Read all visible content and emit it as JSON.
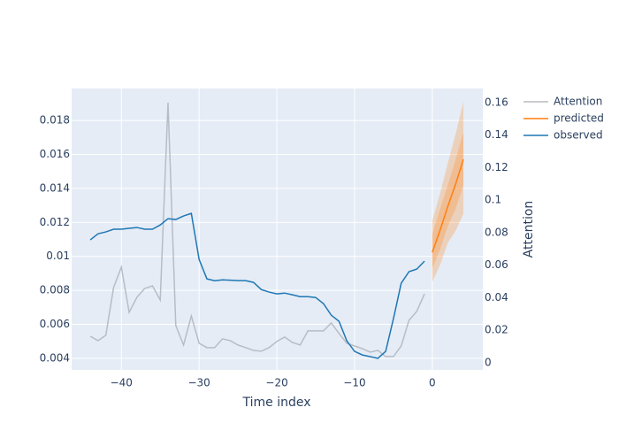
{
  "chart_data": {
    "type": "line",
    "xlabel": "Time index",
    "y2label": "Attention",
    "xlim": [
      -46.4,
      6.5
    ],
    "ylim": [
      0.00332,
      0.01988
    ],
    "y2lim": [
      -0.0044,
      0.1687
    ],
    "xticks": [
      {
        "value": -40,
        "label": "−40"
      },
      {
        "value": -30,
        "label": "−30"
      },
      {
        "value": -20,
        "label": "−20"
      },
      {
        "value": -10,
        "label": "−10"
      },
      0
    ],
    "yticks": [
      0.004,
      0.006,
      0.008,
      0.01,
      0.012,
      0.014,
      0.016,
      0.018
    ],
    "y2ticks": [
      0,
      0.02,
      0.04,
      0.06,
      0.08,
      0.1,
      0.12,
      0.14,
      0.16
    ],
    "grid": true,
    "series": [
      {
        "name": "Attention",
        "color": "#b8bcc4",
        "axis": "y2",
        "x": [
          -44,
          -43,
          -42,
          -41,
          -40,
          -39,
          -38,
          -37,
          -36,
          -35,
          -34,
          -33,
          -32,
          -31,
          -30,
          -29,
          -28,
          -27,
          -26,
          -25,
          -24,
          -23,
          -22,
          -21,
          -20,
          -19,
          -18,
          -17,
          -16,
          -15,
          -14,
          -13,
          -12,
          -11,
          -10,
          -9,
          -8,
          -7,
          -6,
          -5,
          -4,
          -3,
          -2,
          -1
        ],
        "values": [
          0.0163,
          0.0136,
          0.0169,
          0.0463,
          0.0588,
          0.031,
          0.0403,
          0.0457,
          0.0473,
          0.0386,
          0.16,
          0.0229,
          0.0109,
          0.0288,
          0.012,
          0.0093,
          0.0093,
          0.0147,
          0.0136,
          0.0109,
          0.0093,
          0.0076,
          0.0071,
          0.0093,
          0.0131,
          0.0158,
          0.0125,
          0.0109,
          0.0196,
          0.0196,
          0.0196,
          0.0245,
          0.018,
          0.012,
          0.0103,
          0.0087,
          0.0065,
          0.0076,
          0.0038,
          0.0038,
          0.0103,
          0.0261,
          0.0316,
          0.0424
        ]
      },
      {
        "name": "predicted",
        "color": "#ff7f0e",
        "x": [
          0,
          1,
          2,
          3,
          4
        ],
        "values": [
          0.01024,
          0.01154,
          0.01295,
          0.01425,
          0.01571
        ],
        "bands": [
          {
            "upper": [
              0.0121,
              0.0137,
              0.0155,
              0.0172,
              0.0191
            ],
            "lower": [
              0.0085,
              0.0095,
              0.0108,
              0.0115,
              0.0125
            ]
          },
          {
            "upper": [
              0.0113,
              0.0128,
              0.0142,
              0.0157,
              0.0173
            ],
            "lower": [
              0.0093,
              0.0104,
              0.0118,
              0.0128,
              0.0142
            ]
          }
        ]
      },
      {
        "name": "observed",
        "color": "#1f77b4",
        "x": [
          -44,
          -43,
          -42,
          -41,
          -40,
          -39,
          -38,
          -37,
          -36,
          -35,
          -34,
          -33,
          -32,
          -31,
          -30,
          -29,
          -28,
          -27,
          -26,
          -25,
          -24,
          -23,
          -22,
          -21,
          -20,
          -19,
          -18,
          -17,
          -16,
          -15,
          -14,
          -13,
          -12,
          -11,
          -10,
          -9,
          -8,
          -7,
          -6,
          -5,
          -4,
          -3,
          -2,
          -1
        ],
        "values": [
          0.01097,
          0.01133,
          0.01144,
          0.0116,
          0.0116,
          0.01165,
          0.0117,
          0.0116,
          0.0116,
          0.01185,
          0.01222,
          0.01217,
          0.01238,
          0.01253,
          0.00982,
          0.00868,
          0.00857,
          0.00862,
          0.0086,
          0.00857,
          0.00857,
          0.00847,
          0.00805,
          0.0079,
          0.00779,
          0.00784,
          0.00774,
          0.00763,
          0.00763,
          0.00758,
          0.00722,
          0.00654,
          0.00618,
          0.00503,
          0.00441,
          0.0042,
          0.0041,
          0.004,
          0.00441,
          0.00633,
          0.00842,
          0.0091,
          0.00925,
          0.00972
        ]
      }
    ]
  }
}
